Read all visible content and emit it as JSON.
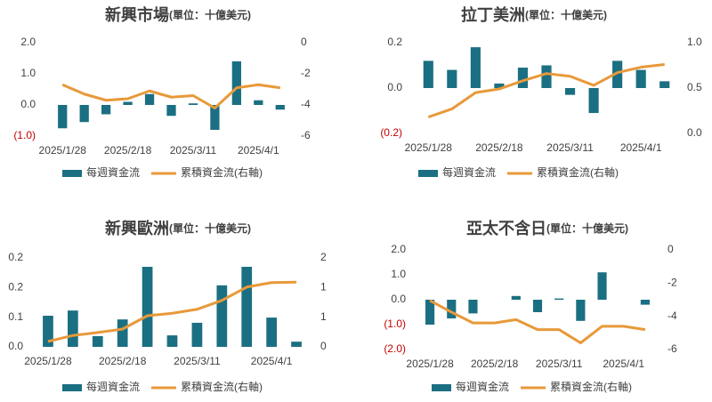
{
  "chart_data": [
    {
      "type": "bar_line",
      "title": "新興市場",
      "subtitle": "(單位：十億美元)",
      "categories": [
        "2025/1/28",
        null,
        null,
        "2025/2/18",
        null,
        null,
        "2025/3/11",
        null,
        null,
        "2025/4/1",
        null
      ],
      "series": [
        {
          "name": "每週資金流",
          "color": "#1b6f82",
          "values": [
            -0.75,
            -0.55,
            -0.3,
            0.1,
            0.35,
            -0.35,
            0.05,
            -0.8,
            1.4,
            0.15,
            -0.15
          ]
        },
        {
          "name": "累積資金流(右軸)",
          "color": "#e8993a",
          "axis": "y2",
          "values": [
            -2.7,
            -3.3,
            -3.7,
            -3.6,
            -3.1,
            -3.5,
            -3.4,
            -4.2,
            -2.9,
            -2.7,
            -2.9
          ]
        }
      ],
      "ylim": [
        -1,
        2
      ],
      "yticks": [
        {
          "value": 2,
          "label": "2.0"
        },
        {
          "value": 1,
          "label": "1.0"
        },
        {
          "value": 0,
          "label": "0.0"
        },
        {
          "value": -1,
          "label": "(1.0)"
        }
      ],
      "y2lim": [
        -6,
        0
      ],
      "y2ticks": [
        0,
        -2,
        -4,
        -6
      ],
      "negative_label_color": "#c00000"
    },
    {
      "type": "bar_line",
      "title": "拉丁美洲",
      "subtitle": "(單位：十億美元)",
      "categories": [
        "2025/1/28",
        null,
        null,
        "2025/2/18",
        null,
        null,
        "2025/3/11",
        null,
        null,
        "2025/4/1",
        null
      ],
      "series": [
        {
          "name": "每週資金流",
          "color": "#1b6f82",
          "values": [
            0.12,
            0.08,
            0.18,
            0.02,
            0.09,
            0.1,
            -0.03,
            -0.11,
            0.12,
            0.08,
            0.03
          ]
        },
        {
          "name": "累積資金流(右軸)",
          "color": "#e8993a",
          "axis": "y2",
          "values": [
            0.18,
            0.27,
            0.45,
            0.49,
            0.58,
            0.66,
            0.63,
            0.53,
            0.67,
            0.73,
            0.76
          ]
        }
      ],
      "ylim": [
        -0.2,
        0.2
      ],
      "yticks": [
        {
          "value": 0.2,
          "label": "0.2"
        },
        {
          "value": 0,
          "label": "0.0"
        },
        {
          "value": -0.2,
          "label": "(0.2)"
        }
      ],
      "y2lim": [
        0,
        1
      ],
      "y2ticks": [
        {
          "value": 1,
          "label": "1.0"
        },
        {
          "value": 0.5,
          "label": "0.5"
        },
        {
          "value": 0,
          "label": "0.0"
        }
      ],
      "negative_label_color": "#c00000"
    },
    {
      "type": "bar_line",
      "title": "新興歐洲",
      "subtitle": "(單位：十億美元)",
      "categories": [
        "2025/1/28",
        null,
        null,
        "2025/2/18",
        null,
        null,
        "2025/3/11",
        null,
        null,
        "2025/4/1",
        null
      ],
      "series": [
        {
          "name": "每週資金流",
          "color": "#1b6f82",
          "values": [
            0.084,
            0.098,
            0.029,
            0.074,
            0.216,
            0.031,
            0.065,
            0.166,
            0.216,
            0.079,
            0.014
          ]
        },
        {
          "name": "累積資金流(右軸)",
          "color": "#e8993a",
          "axis": "y2",
          "values": [
            0.11,
            0.23,
            0.29,
            0.36,
            0.63,
            0.68,
            0.76,
            0.94,
            1.21,
            1.3,
            1.31
          ]
        }
      ],
      "ylim": [
        0,
        0.24
      ],
      "yticks": [
        {
          "value": 0.24,
          "label": "0.2"
        },
        {
          "value": 0.16,
          "label": "0.2"
        },
        {
          "value": 0.08,
          "label": "0.1"
        },
        {
          "value": 0,
          "label": "0.0"
        }
      ],
      "y2lim": [
        0,
        1.8
      ],
      "y2ticks": [
        {
          "value": 1.8,
          "label": "2"
        },
        {
          "value": 1.2,
          "label": "1"
        },
        {
          "value": 0.6,
          "label": "1"
        },
        0
      ],
      "negative_label_color": "#c00000"
    },
    {
      "type": "bar_line",
      "title": "亞太不含日",
      "subtitle": "(單位：十億美元)",
      "categories": [
        "2025/1/28",
        null,
        null,
        "2025/2/18",
        null,
        null,
        "2025/3/11",
        null,
        null,
        "2025/4/1",
        null
      ],
      "series": [
        {
          "name": "每週資金流",
          "color": "#1b6f82",
          "values": [
            -1.0,
            -0.75,
            -0.55,
            0,
            0.15,
            -0.5,
            0.05,
            -0.85,
            1.1,
            0,
            -0.2
          ]
        },
        {
          "name": "累積資金流(右軸)",
          "color": "#e8993a",
          "axis": "y2",
          "values": [
            -3.05,
            -3.75,
            -4.4,
            -4.4,
            -4.2,
            -4.8,
            -4.8,
            -5.6,
            -4.6,
            -4.6,
            -4.8
          ]
        }
      ],
      "ylim": [
        -2,
        2
      ],
      "yticks": [
        {
          "value": 2,
          "label": "2.0"
        },
        {
          "value": 1,
          "label": "1.0"
        },
        {
          "value": 0,
          "label": "0.0"
        },
        {
          "value": -1,
          "label": "(1.0)"
        },
        {
          "value": -2,
          "label": "(2.0)"
        }
      ],
      "y2lim": [
        -6,
        0
      ],
      "y2ticks": [
        0,
        -2,
        -4,
        -6
      ],
      "negative_label_color": "#c00000"
    }
  ]
}
